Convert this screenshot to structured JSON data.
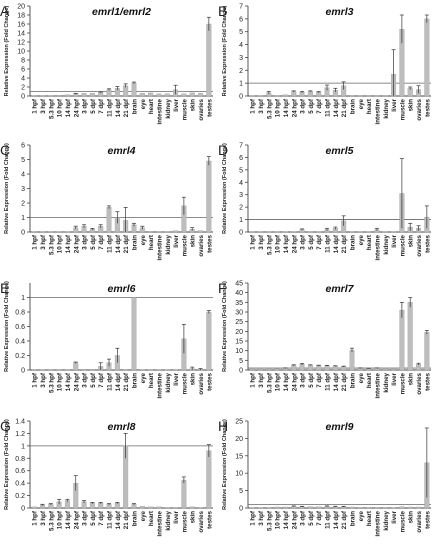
{
  "figure": {
    "ylabel": "Relative Expression (Fold Change)",
    "categories": [
      "1 hpf",
      "3 hpf",
      "5.3 hpf",
      "10 hpf",
      "14 hpf",
      "24 hpf",
      "3 dpf",
      "5 dpf",
      "7 dpf",
      "11 dpf",
      "14 dpf",
      "21 dpf",
      "brain",
      "eye",
      "heart",
      "intestine",
      "kidney",
      "liver",
      "muscle",
      "skin",
      "ovaries",
      "testes"
    ]
  },
  "chart_data": [
    {
      "type": "bar",
      "letter": "A",
      "title": "emrl1/emrl2",
      "ylim": [
        0,
        20
      ],
      "yticks": [
        0,
        2,
        4,
        6,
        8,
        10,
        12,
        14,
        16,
        18,
        20
      ],
      "reference_line": 1,
      "values": [
        0.1,
        0.1,
        0.1,
        0.2,
        0.3,
        0.5,
        0.6,
        0.6,
        0.8,
        1.4,
        1.7,
        2.3,
        2.9,
        0.6,
        0.7,
        0.5,
        0.5,
        1.4,
        0.5,
        0.7,
        0.6,
        16.0
      ],
      "errors": [
        0,
        0,
        0,
        0,
        0,
        0.1,
        0,
        0,
        0.1,
        0.2,
        0.4,
        0.4,
        0.2,
        0,
        0,
        0,
        0,
        1.0,
        0,
        0,
        0,
        1.5
      ]
    },
    {
      "type": "bar",
      "letter": "B",
      "title": "emrl3",
      "ylim": [
        0,
        7
      ],
      "yticks": [
        0,
        1,
        2,
        3,
        4,
        5,
        6,
        7
      ],
      "reference_line": 1,
      "values": [
        0.02,
        0.02,
        0.25,
        0.05,
        0.1,
        0.35,
        0.3,
        0.35,
        0.3,
        0.65,
        0.45,
        0.8,
        0.05,
        0.05,
        0.05,
        0.05,
        0.05,
        1.7,
        5.2,
        0.6,
        0.5,
        6.0
      ],
      "errors": [
        0,
        0,
        0.1,
        0,
        0,
        0.05,
        0.05,
        0.05,
        0.05,
        0.2,
        0.15,
        0.3,
        0,
        0,
        0,
        0,
        0,
        1.9,
        1.1,
        0.1,
        0.3,
        0.3
      ]
    },
    {
      "type": "bar",
      "letter": "C",
      "title": "emrl4",
      "ylim": [
        0,
        6
      ],
      "yticks": [
        0,
        1,
        2,
        3,
        4,
        5,
        6
      ],
      "reference_line": 1,
      "values": [
        0.02,
        0.02,
        0.02,
        0.02,
        0.02,
        0.3,
        0.4,
        0.2,
        0.4,
        1.7,
        1.0,
        0.8,
        0.5,
        0.3,
        0.05,
        0.02,
        0.02,
        0.1,
        1.8,
        0.2,
        0.1,
        4.9
      ],
      "errors": [
        0,
        0,
        0,
        0,
        0,
        0.1,
        0.1,
        0.05,
        0.1,
        0.1,
        0.4,
        0.9,
        0.1,
        0.1,
        0,
        0,
        0,
        0,
        0.6,
        0.1,
        0,
        0.3
      ]
    },
    {
      "type": "bar",
      "letter": "D",
      "title": "emrl5",
      "ylim": [
        0,
        7
      ],
      "yticks": [
        0,
        1,
        2,
        3,
        4,
        5,
        6,
        7
      ],
      "reference_line": 1,
      "values": [
        0.02,
        0.02,
        0.02,
        0.02,
        0.02,
        0.02,
        0.2,
        0.05,
        0.05,
        0.2,
        0.3,
        0.9,
        0.05,
        0.05,
        0.02,
        0.2,
        0.02,
        0.02,
        3.1,
        0.4,
        0.3,
        1.2
      ],
      "errors": [
        0,
        0,
        0,
        0,
        0,
        0,
        0.05,
        0,
        0,
        0.1,
        0.1,
        0.4,
        0,
        0,
        0,
        0.1,
        0,
        0,
        2.8,
        0.3,
        0.2,
        0.9
      ]
    },
    {
      "type": "bar",
      "letter": "E",
      "title": "emrl6",
      "ylim": [
        0,
        1.2
      ],
      "yticks": [
        0,
        0.2,
        0.4,
        0.6,
        0.8,
        1
      ],
      "reference_line": 1,
      "values": [
        0.005,
        0.005,
        0.005,
        0.005,
        0.005,
        0.1,
        0.01,
        0.01,
        0.05,
        0.1,
        0.2,
        0.01,
        1.0,
        0.005,
        0.005,
        0.005,
        0.005,
        0.005,
        0.43,
        0.02,
        0.01,
        0.8
      ],
      "errors": [
        0,
        0,
        0,
        0,
        0,
        0.01,
        0,
        0,
        0.05,
        0.05,
        0.1,
        0,
        0,
        0,
        0,
        0,
        0,
        0,
        0.2,
        0.02,
        0.01,
        0.02
      ]
    },
    {
      "type": "bar",
      "letter": "F",
      "title": "emrl7",
      "ylim": [
        0,
        45
      ],
      "yticks": [
        0,
        5,
        10,
        15,
        20,
        25,
        30,
        35,
        40,
        45
      ],
      "reference_line": 1,
      "values": [
        0.5,
        0.5,
        0.5,
        0.8,
        1.0,
        2.4,
        3.0,
        2.5,
        2.3,
        2.2,
        2.0,
        1.8,
        10.3,
        1.0,
        0.8,
        1.0,
        0.5,
        0.5,
        31.0,
        35.0,
        3.0,
        19.5
      ],
      "errors": [
        0,
        0,
        0,
        0,
        0.1,
        0.3,
        0.4,
        0.2,
        0.2,
        0.2,
        0.2,
        0.2,
        1.0,
        0.1,
        0.1,
        0.1,
        0,
        0,
        4.0,
        2.5,
        0.5,
        1.0
      ]
    },
    {
      "type": "bar",
      "letter": "G",
      "title": "emrl8",
      "ylim": [
        0,
        1.4
      ],
      "yticks": [
        0,
        0.2,
        0.4,
        0.6,
        0.8,
        1,
        1.2,
        1.4
      ],
      "reference_line": 1,
      "values": [
        0.02,
        0.05,
        0.06,
        0.1,
        0.12,
        0.4,
        0.1,
        0.08,
        0.08,
        0.06,
        0.08,
        1.0,
        0.06,
        0.03,
        0.02,
        0.02,
        0.01,
        0.01,
        0.45,
        0.02,
        0.01,
        0.92
      ],
      "errors": [
        0,
        0.01,
        0.01,
        0.04,
        0.02,
        0.12,
        0.02,
        0.01,
        0.01,
        0.01,
        0.01,
        0.2,
        0.01,
        0,
        0,
        0,
        0,
        0,
        0.05,
        0,
        0,
        0.1
      ]
    },
    {
      "type": "bar",
      "letter": "H",
      "title": "emrl9",
      "ylim": [
        0,
        25
      ],
      "yticks": [
        0,
        5,
        10,
        15,
        20,
        25
      ],
      "reference_line": 1,
      "values": [
        0.1,
        0.1,
        0.2,
        0.3,
        0.3,
        0.5,
        0.4,
        0.4,
        0.4,
        0.5,
        0.4,
        0.4,
        0.3,
        0.2,
        0.2,
        0.2,
        0.2,
        0.1,
        0.4,
        0.3,
        0.3,
        13.0
      ],
      "errors": [
        0,
        0,
        0,
        0,
        0,
        0.1,
        0.1,
        0,
        0,
        0.1,
        0.1,
        0.1,
        0,
        0,
        0,
        0,
        0,
        0,
        0,
        0,
        0,
        10.0
      ]
    }
  ]
}
